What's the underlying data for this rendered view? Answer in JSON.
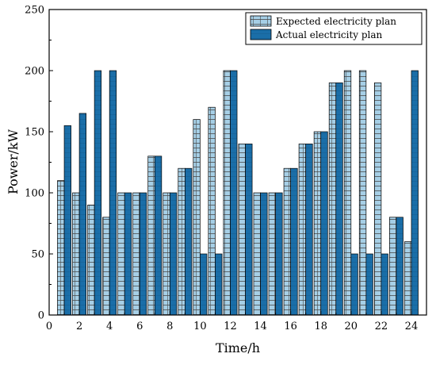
{
  "chart_data": {
    "type": "bar",
    "title": "",
    "xlabel": "Time/h",
    "ylabel": "Power/kW",
    "xlim": [
      0,
      25
    ],
    "ylim": [
      0,
      250
    ],
    "x_ticks": [
      0,
      2,
      4,
      6,
      8,
      10,
      12,
      14,
      16,
      18,
      20,
      22,
      24
    ],
    "y_ticks": [
      0,
      50,
      100,
      150,
      200,
      250
    ],
    "categories": [
      1,
      2,
      3,
      4,
      5,
      6,
      7,
      8,
      9,
      10,
      11,
      12,
      13,
      14,
      15,
      16,
      17,
      18,
      19,
      20,
      21,
      22,
      23,
      24
    ],
    "series": [
      {
        "name": "Expected electricity plan",
        "color": "#a6cfe6",
        "pattern": "grid",
        "values": [
          110,
          100,
          90,
          80,
          100,
          100,
          130,
          100,
          120,
          160,
          170,
          200,
          140,
          100,
          100,
          120,
          140,
          150,
          190,
          200,
          200,
          190,
          80,
          60
        ]
      },
      {
        "name": "Actual electricity plan",
        "color": "#1a6ea8",
        "pattern": "solid",
        "values": [
          155,
          165,
          200,
          200,
          100,
          100,
          130,
          100,
          120,
          50,
          50,
          200,
          140,
          100,
          100,
          120,
          140,
          150,
          190,
          50,
          50,
          50,
          80,
          200
        ]
      }
    ],
    "legend_position": "top-right",
    "grid": false
  }
}
